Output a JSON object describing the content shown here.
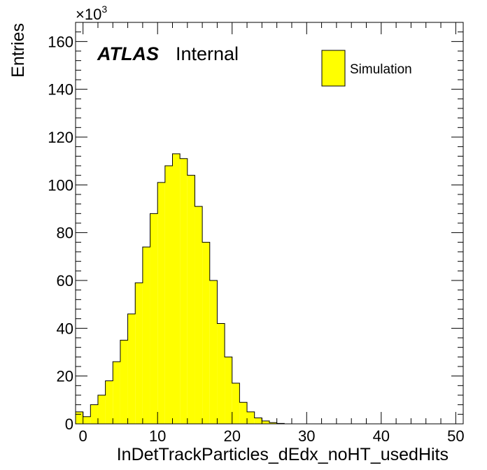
{
  "chart_data": {
    "type": "bar",
    "histogram": true,
    "xlabel": "InDetTrackParticles_dEdx_noHT_usedHits",
    "ylabel": "Entries",
    "y_multiplier_label": "×10",
    "y_multiplier_exponent": "3",
    "xlim": [
      -1,
      51
    ],
    "ylim": [
      0,
      168
    ],
    "x_ticks": [
      0,
      10,
      20,
      30,
      40,
      50
    ],
    "y_ticks": [
      0,
      20,
      40,
      60,
      80,
      100,
      120,
      140,
      160
    ],
    "legend": {
      "entries": [
        "Simulation"
      ],
      "placement": "top-right"
    },
    "experiment_label": {
      "bold": "ATLAS",
      "text": "Internal"
    },
    "fill_color": "#ffff00",
    "edge_color": "#000000",
    "bins": [
      {
        "lo": -1,
        "hi": 0,
        "v": 5
      },
      {
        "lo": 0,
        "hi": 1,
        "v": 3
      },
      {
        "lo": 1,
        "hi": 2,
        "v": 8
      },
      {
        "lo": 2,
        "hi": 3,
        "v": 12
      },
      {
        "lo": 3,
        "hi": 4,
        "v": 18
      },
      {
        "lo": 4,
        "hi": 5,
        "v": 26
      },
      {
        "lo": 5,
        "hi": 6,
        "v": 35
      },
      {
        "lo": 6,
        "hi": 7,
        "v": 46
      },
      {
        "lo": 7,
        "hi": 8,
        "v": 59
      },
      {
        "lo": 8,
        "hi": 9,
        "v": 74
      },
      {
        "lo": 9,
        "hi": 10,
        "v": 88
      },
      {
        "lo": 10,
        "hi": 11,
        "v": 101
      },
      {
        "lo": 11,
        "hi": 12,
        "v": 108
      },
      {
        "lo": 12,
        "hi": 13,
        "v": 113
      },
      {
        "lo": 13,
        "hi": 14,
        "v": 111
      },
      {
        "lo": 14,
        "hi": 15,
        "v": 104
      },
      {
        "lo": 15,
        "hi": 16,
        "v": 91
      },
      {
        "lo": 16,
        "hi": 17,
        "v": 76
      },
      {
        "lo": 17,
        "hi": 18,
        "v": 60
      },
      {
        "lo": 18,
        "hi": 19,
        "v": 42
      },
      {
        "lo": 19,
        "hi": 20,
        "v": 28
      },
      {
        "lo": 20,
        "hi": 21,
        "v": 17
      },
      {
        "lo": 21,
        "hi": 22,
        "v": 9
      },
      {
        "lo": 22,
        "hi": 23,
        "v": 5
      },
      {
        "lo": 23,
        "hi": 24,
        "v": 2.5
      },
      {
        "lo": 24,
        "hi": 25,
        "v": 1.2
      },
      {
        "lo": 25,
        "hi": 26,
        "v": 0.5
      },
      {
        "lo": 26,
        "hi": 27,
        "v": 0.2
      }
    ]
  }
}
